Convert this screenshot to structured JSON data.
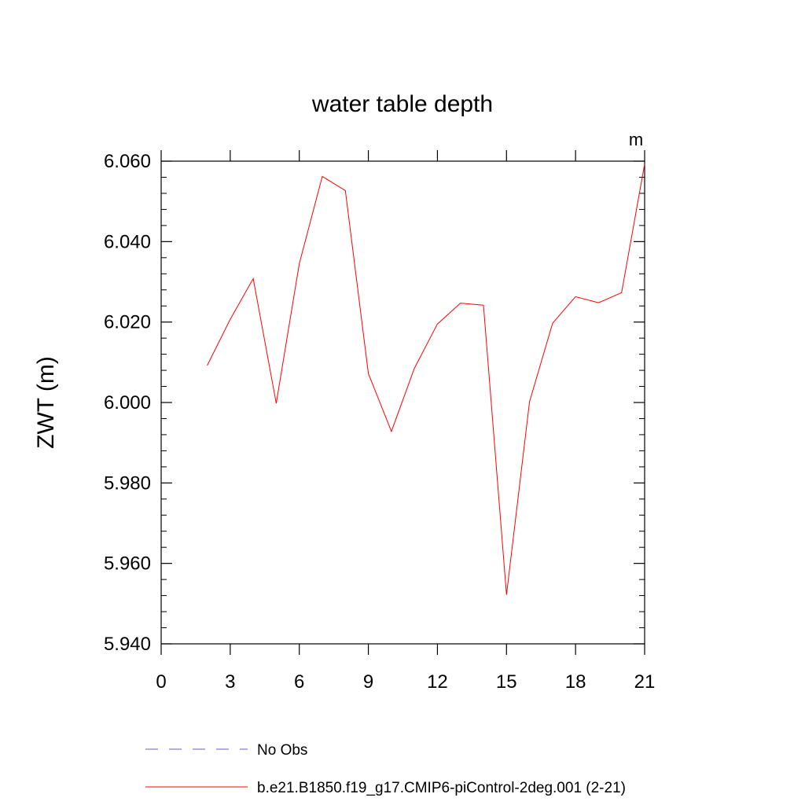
{
  "chart_data": {
    "type": "line",
    "title": "water table depth",
    "units_label": "m",
    "ylabel": "ZWT  (m)",
    "xlabel": "",
    "xlim": [
      0,
      21
    ],
    "ylim": [
      5.94,
      6.06
    ],
    "x_ticks": [
      0,
      3,
      6,
      9,
      12,
      15,
      18,
      21
    ],
    "x_tick_labels": [
      "0",
      "3",
      "6",
      "9",
      "12",
      "15",
      "18",
      "21"
    ],
    "y_ticks": [
      5.94,
      5.96,
      5.98,
      6.0,
      6.02,
      6.04,
      6.06
    ],
    "y_tick_labels": [
      "5.940",
      "5.960",
      "5.980",
      "6.000",
      "6.020",
      "6.040",
      "6.060"
    ],
    "grid": false,
    "legend_position": "bottom",
    "series": [
      {
        "name": "No Obs",
        "color": "#6a5acd",
        "style": "dashed",
        "x": [],
        "y": []
      },
      {
        "name": "b.e21.B1850.f19_g17.CMIP6-piControl-2deg.001 (2-21)",
        "color": "#ff0000",
        "style": "solid",
        "x": [
          2,
          3,
          4,
          5,
          6,
          7,
          8,
          9,
          10,
          11,
          12,
          13,
          14,
          15,
          16,
          17,
          18,
          19,
          20,
          21
        ],
        "y": [
          6.0092,
          6.0207,
          6.0308,
          5.9998,
          6.0345,
          6.0562,
          6.0527,
          6.0072,
          5.9928,
          6.0085,
          6.0195,
          6.0247,
          6.0242,
          5.9522,
          6.0002,
          6.0197,
          6.0263,
          6.0248,
          6.0273,
          6.0593
        ]
      }
    ]
  }
}
